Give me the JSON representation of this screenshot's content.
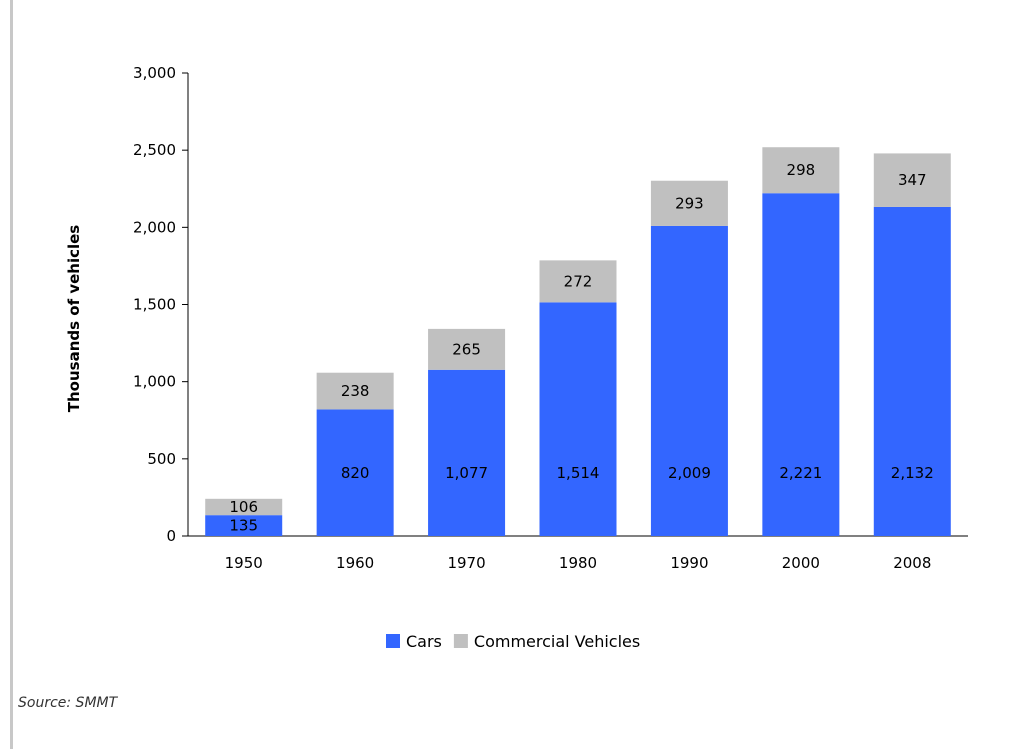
{
  "chart_data": {
    "type": "bar",
    "stacked": true,
    "categories": [
      "1950",
      "1960",
      "1970",
      "1980",
      "1990",
      "2000",
      "2008"
    ],
    "series": [
      {
        "name": "Cars",
        "color": "#3366ff",
        "values": [
          135,
          820,
          1077,
          1514,
          2009,
          2221,
          2132
        ],
        "labels": [
          "135",
          "820",
          "1,077",
          "1,514",
          "2,009",
          "2,221",
          "2,132"
        ]
      },
      {
        "name": "Commercial Vehicles",
        "color": "#c0c0c0",
        "values": [
          106,
          238,
          265,
          272,
          293,
          298,
          347
        ],
        "labels": [
          "106",
          "238",
          "265",
          "272",
          "293",
          "298",
          "347"
        ]
      }
    ],
    "title": "",
    "xlabel": "",
    "ylabel": "Thousands of vehicles",
    "ylim": [
      0,
      3000
    ],
    "yticks": [
      0,
      500,
      1000,
      1500,
      2000,
      2500,
      3000
    ],
    "ytick_labels": [
      "0",
      "500",
      "1,000",
      "1,500",
      "2,000",
      "2,500",
      "3,000"
    ],
    "grid": false,
    "legend_position": "bottom"
  },
  "source": "Source: SMMT"
}
